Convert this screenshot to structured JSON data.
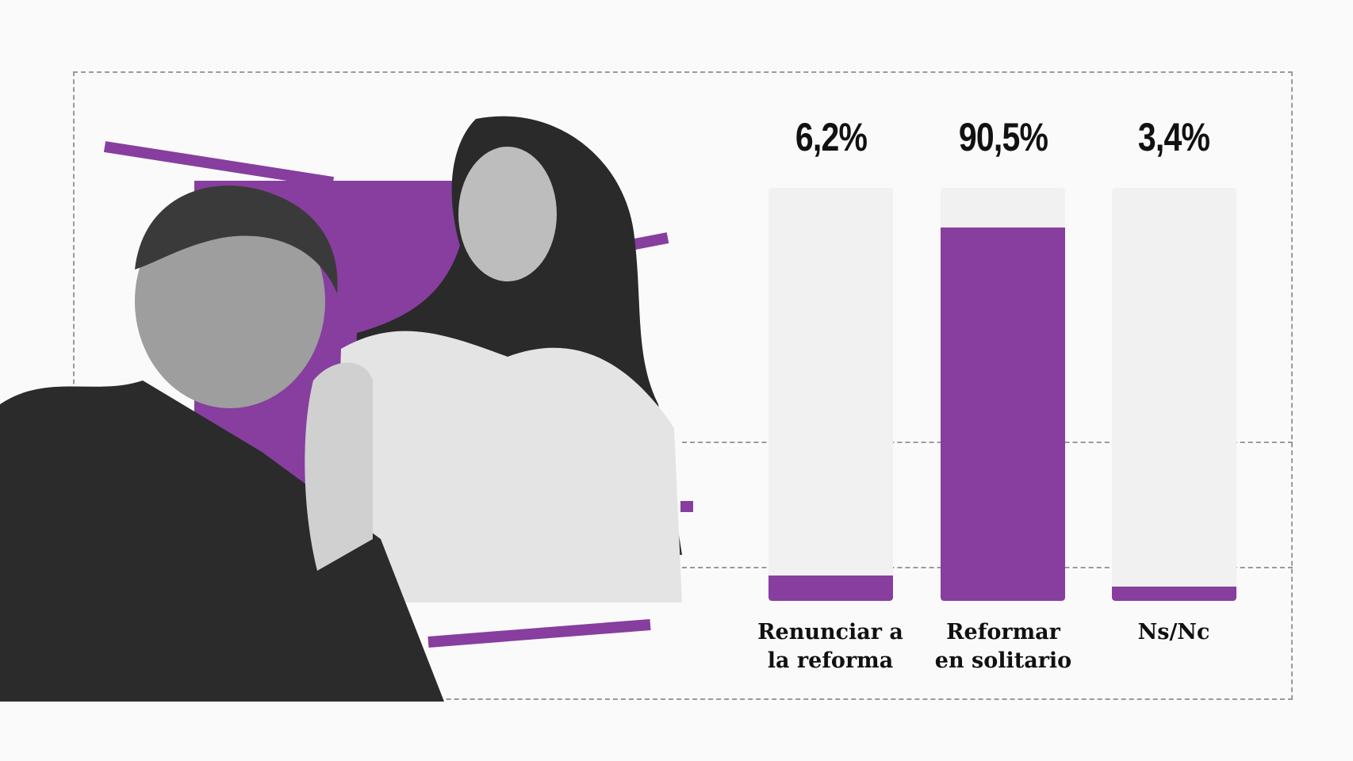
{
  "colors": {
    "accent": "#873e9f",
    "track": "#f1f1f1",
    "background": "#fafafa"
  },
  "chart_data": {
    "type": "bar",
    "categories": [
      "Renunciar a\nla reforma",
      "Reformar\nen solitario",
      "Ns/Nc"
    ],
    "values": [
      6.2,
      90.5,
      3.4
    ],
    "value_labels": [
      "6,2%",
      "90,5%",
      "3,4%"
    ],
    "ylim": [
      0,
      100
    ],
    "title": "",
    "xlabel": "",
    "ylabel": ""
  }
}
